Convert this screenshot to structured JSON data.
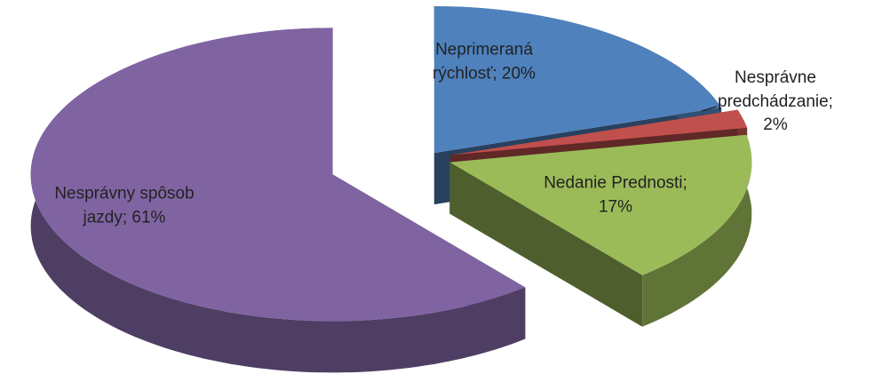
{
  "chart_data": {
    "type": "pie3d",
    "values": [
      20,
      2,
      17,
      61
    ],
    "value_labels": [
      "Neprimeraná\nrýchlosť; 20%",
      "Nesprávne\npredchádzanie;\n2%",
      "Nedanie Prednosti;\n17%",
      "Nesprávny spôsob\njazdy; 61%"
    ],
    "colors": [
      "#4f81bd",
      "#c0504d",
      "#9bbb59",
      "#8064a2"
    ]
  }
}
